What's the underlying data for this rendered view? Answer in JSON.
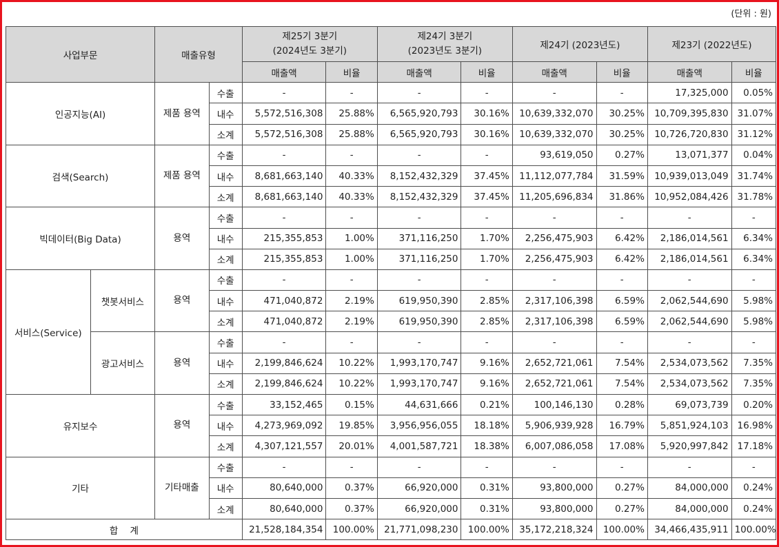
{
  "unit_label": "(단위 : 원)",
  "header": {
    "division": "사업부문",
    "sales_type": "매출유형",
    "periods": [
      {
        "line1": "제25기 3분기",
        "line2": "(2024년도 3분기)"
      },
      {
        "line1": "제24기 3분기",
        "line2": "(2023년도 3분기)"
      },
      {
        "line1": "제24기 (2023년도)",
        "line2": ""
      },
      {
        "line1": "제23기 (2022년도)",
        "line2": ""
      }
    ],
    "amount": "매출액",
    "ratio": "비율"
  },
  "groups": [
    {
      "name": "인공지능(AI)",
      "sub": "",
      "type": "제품 용역",
      "rows": [
        {
          "kind": "수출",
          "vals": [
            "-",
            "-",
            "-",
            "-",
            "-",
            "-",
            "17,325,000",
            "0.05%"
          ]
        },
        {
          "kind": "내수",
          "vals": [
            "5,572,516,308",
            "25.88%",
            "6,565,920,793",
            "30.16%",
            "10,639,332,070",
            "30.25%",
            "10,709,395,830",
            "31.07%"
          ]
        },
        {
          "kind": "소계",
          "vals": [
            "5,572,516,308",
            "25.88%",
            "6,565,920,793",
            "30.16%",
            "10,639,332,070",
            "30.25%",
            "10,726,720,830",
            "31.12%"
          ]
        }
      ]
    },
    {
      "name": "검색(Search)",
      "sub": "",
      "type": "제품 용역",
      "rows": [
        {
          "kind": "수출",
          "vals": [
            "-",
            "-",
            "-",
            "-",
            "93,619,050",
            "0.27%",
            "13,071,377",
            "0.04%"
          ]
        },
        {
          "kind": "내수",
          "vals": [
            "8,681,663,140",
            "40.33%",
            "8,152,432,329",
            "37.45%",
            "11,112,077,784",
            "31.59%",
            "10,939,013,049",
            "31.74%"
          ]
        },
        {
          "kind": "소계",
          "vals": [
            "8,681,663,140",
            "40.33%",
            "8,152,432,329",
            "37.45%",
            "11,205,696,834",
            "31.86%",
            "10,952,084,426",
            "31.78%"
          ]
        }
      ]
    },
    {
      "name": "빅데이터(Big Data)",
      "sub": "",
      "type": "용역",
      "rows": [
        {
          "kind": "수출",
          "vals": [
            "-",
            "-",
            "-",
            "-",
            "-",
            "-",
            "-",
            "-"
          ]
        },
        {
          "kind": "내수",
          "vals": [
            "215,355,853",
            "1.00%",
            "371,116,250",
            "1.70%",
            "2,256,475,903",
            "6.42%",
            "2,186,014,561",
            "6.34%"
          ]
        },
        {
          "kind": "소계",
          "vals": [
            "215,355,853",
            "1.00%",
            "371,116,250",
            "1.70%",
            "2,256,475,903",
            "6.42%",
            "2,186,014,561",
            "6.34%"
          ]
        }
      ]
    },
    {
      "name": "서비스(Service)",
      "sub": "챗봇서비스",
      "type": "용역",
      "rows": [
        {
          "kind": "수출",
          "vals": [
            "-",
            "-",
            "-",
            "-",
            "-",
            "-",
            "-",
            "-"
          ]
        },
        {
          "kind": "내수",
          "vals": [
            "471,040,872",
            "2.19%",
            "619,950,390",
            "2.85%",
            "2,317,106,398",
            "6.59%",
            "2,062,544,690",
            "5.98%"
          ]
        },
        {
          "kind": "소계",
          "vals": [
            "471,040,872",
            "2.19%",
            "619,950,390",
            "2.85%",
            "2,317,106,398",
            "6.59%",
            "2,062,544,690",
            "5.98%"
          ]
        }
      ]
    },
    {
      "name": "서비스(Service)",
      "sub": "광고서비스",
      "type": "용역",
      "rows": [
        {
          "kind": "수출",
          "vals": [
            "-",
            "-",
            "-",
            "-",
            "-",
            "-",
            "-",
            "-"
          ]
        },
        {
          "kind": "내수",
          "vals": [
            "2,199,846,624",
            "10.22%",
            "1,993,170,747",
            "9.16%",
            "2,652,721,061",
            "7.54%",
            "2,534,073,562",
            "7.35%"
          ]
        },
        {
          "kind": "소계",
          "vals": [
            "2,199,846,624",
            "10.22%",
            "1,993,170,747",
            "9.16%",
            "2,652,721,061",
            "7.54%",
            "2,534,073,562",
            "7.35%"
          ]
        }
      ]
    },
    {
      "name": "유지보수",
      "sub": "",
      "type": "용역",
      "rows": [
        {
          "kind": "수출",
          "vals": [
            "33,152,465",
            "0.15%",
            "44,631,666",
            "0.21%",
            "100,146,130",
            "0.28%",
            "69,073,739",
            "0.20%"
          ]
        },
        {
          "kind": "내수",
          "vals": [
            "4,273,969,092",
            "19.85%",
            "3,956,956,055",
            "18.18%",
            "5,906,939,928",
            "16.79%",
            "5,851,924,103",
            "16.98%"
          ]
        },
        {
          "kind": "소계",
          "vals": [
            "4,307,121,557",
            "20.01%",
            "4,001,587,721",
            "18.38%",
            "6,007,086,058",
            "17.08%",
            "5,920,997,842",
            "17.18%"
          ]
        }
      ]
    },
    {
      "name": "기타",
      "sub": "",
      "type": "기타매출",
      "rows": [
        {
          "kind": "수출",
          "vals": [
            "-",
            "-",
            "-",
            "-",
            "-",
            "-",
            "-",
            "-"
          ]
        },
        {
          "kind": "내수",
          "vals": [
            "80,640,000",
            "0.37%",
            "66,920,000",
            "0.31%",
            "93,800,000",
            "0.27%",
            "84,000,000",
            "0.24%"
          ]
        },
        {
          "kind": "소계",
          "vals": [
            "80,640,000",
            "0.37%",
            "66,920,000",
            "0.31%",
            "93,800,000",
            "0.27%",
            "84,000,000",
            "0.24%"
          ]
        }
      ]
    }
  ],
  "total": {
    "label": "합    계",
    "vals": [
      "21,528,184,354",
      "100.00%",
      "21,771,098,230",
      "100.00%",
      "35,172,218,324",
      "100.00%",
      "34,466,435,911",
      "100.00%"
    ]
  }
}
